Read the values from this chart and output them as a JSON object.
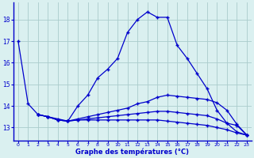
{
  "xlabel": "Graphe des températures (°C)",
  "bg_color": "#daf0f0",
  "grid_color": "#aacccc",
  "line_color": "#0000cc",
  "ylim": [
    12.4,
    18.8
  ],
  "xlim": [
    -0.5,
    23.5
  ],
  "yticks": [
    13,
    14,
    15,
    16,
    17,
    18
  ],
  "xticks": [
    0,
    1,
    2,
    3,
    4,
    5,
    6,
    7,
    8,
    9,
    10,
    11,
    12,
    13,
    14,
    15,
    16,
    17,
    18,
    19,
    20,
    21,
    22,
    23
  ],
  "curve1_x": [
    0,
    1,
    2,
    3,
    4,
    5,
    6,
    7,
    8,
    9,
    10,
    11,
    12,
    13,
    14,
    15,
    16,
    17,
    18,
    19,
    20,
    21,
    22,
    23
  ],
  "curve1_y": [
    17.0,
    14.1,
    13.6,
    13.5,
    13.4,
    13.3,
    14.0,
    14.5,
    15.3,
    15.7,
    16.2,
    17.4,
    18.0,
    18.35,
    18.1,
    18.1,
    16.8,
    16.2,
    15.5,
    14.8,
    13.8,
    13.2,
    12.8,
    12.65
  ],
  "curve2_x": [
    2,
    3,
    4,
    5,
    6,
    7,
    8,
    9,
    10,
    11,
    12,
    13,
    14,
    15,
    16,
    17,
    18,
    19,
    20,
    21,
    22,
    23
  ],
  "curve2_y": [
    13.6,
    13.5,
    13.35,
    13.3,
    13.4,
    13.5,
    13.6,
    13.7,
    13.8,
    13.9,
    14.1,
    14.2,
    14.4,
    14.5,
    14.45,
    14.4,
    14.35,
    14.3,
    14.15,
    13.8,
    13.15,
    12.65
  ],
  "curve3_x": [
    2,
    3,
    4,
    5,
    6,
    7,
    8,
    9,
    10,
    11,
    12,
    13,
    14,
    15,
    16,
    17,
    18,
    19,
    20,
    21,
    22,
    23
  ],
  "curve3_y": [
    13.6,
    13.5,
    13.35,
    13.3,
    13.35,
    13.4,
    13.45,
    13.5,
    13.55,
    13.6,
    13.65,
    13.7,
    13.75,
    13.75,
    13.7,
    13.65,
    13.6,
    13.55,
    13.4,
    13.2,
    13.1,
    12.65
  ],
  "curve4_x": [
    2,
    3,
    4,
    5,
    6,
    7,
    8,
    9,
    10,
    11,
    12,
    13,
    14,
    15,
    16,
    17,
    18,
    19,
    20,
    21,
    22,
    23
  ],
  "curve4_y": [
    13.6,
    13.5,
    13.35,
    13.3,
    13.35,
    13.35,
    13.35,
    13.35,
    13.35,
    13.35,
    13.35,
    13.35,
    13.35,
    13.3,
    13.25,
    13.2,
    13.15,
    13.1,
    13.0,
    12.9,
    12.75,
    12.65
  ]
}
